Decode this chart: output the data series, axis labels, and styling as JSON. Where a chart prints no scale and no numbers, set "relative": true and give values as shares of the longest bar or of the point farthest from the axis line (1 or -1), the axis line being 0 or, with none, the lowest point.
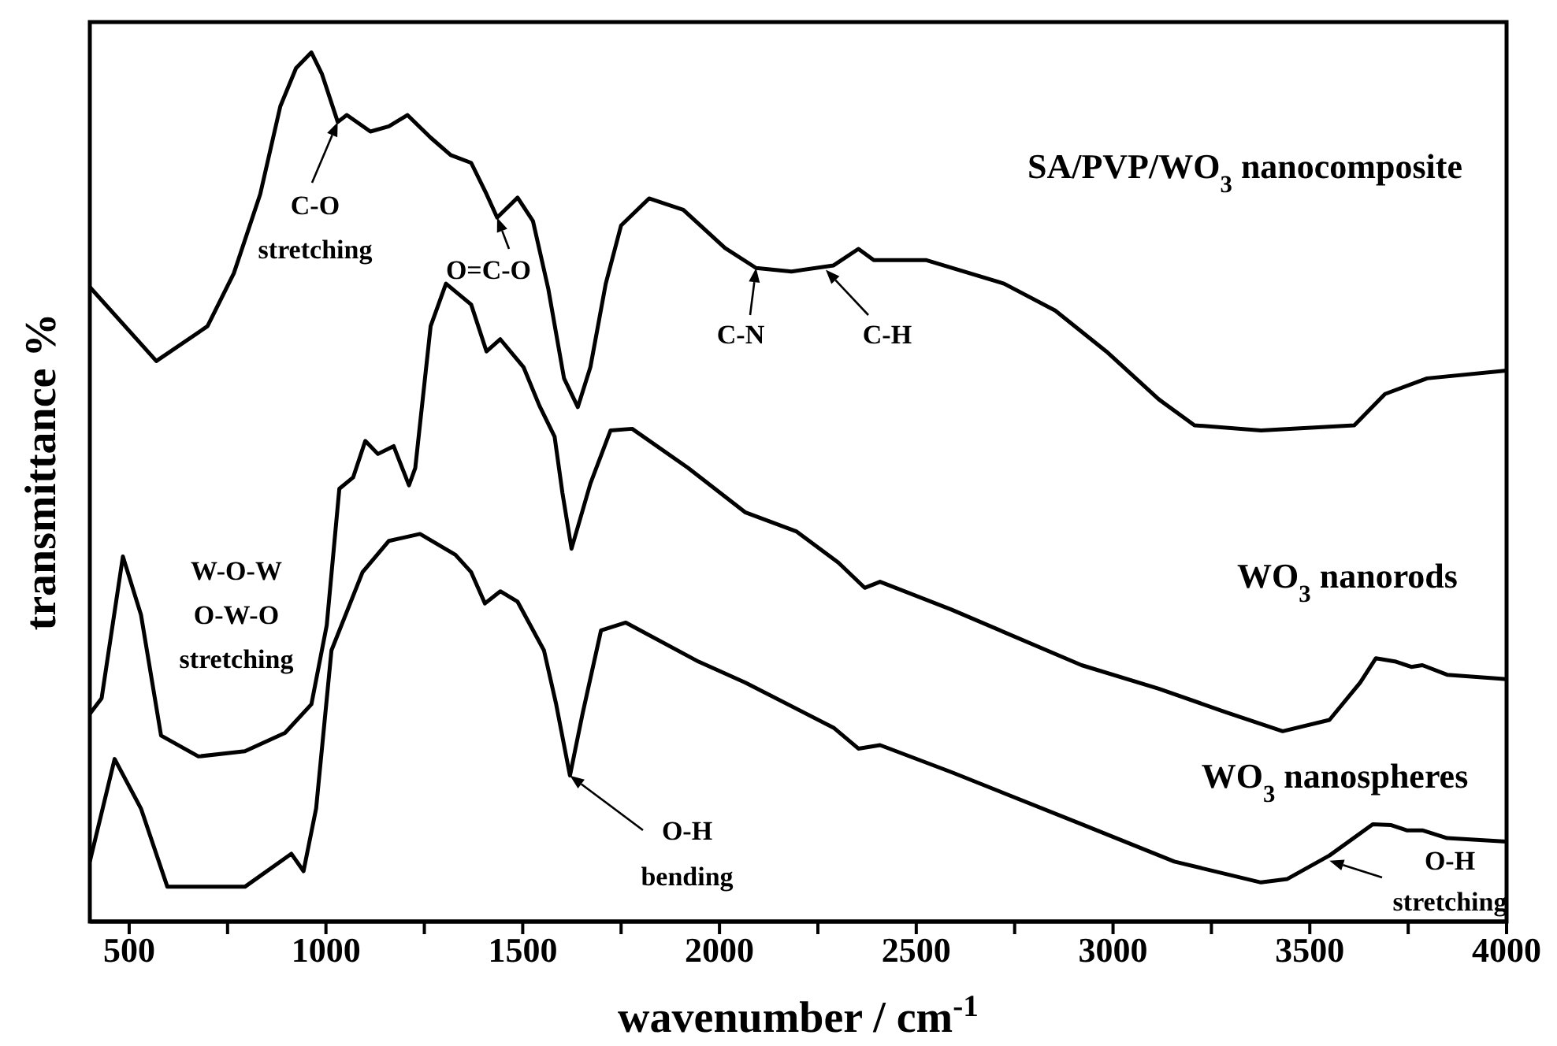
{
  "chart_data": {
    "type": "line",
    "relative": true,
    "xlabel": "wavenumber / cm$^{-1}$",
    "ylabel": "transmittance %",
    "xlim": [
      400,
      4000
    ],
    "xticks": [
      500,
      {
        "value": 750,
        "label": null
      },
      1000,
      {
        "value": 1250,
        "label": null
      },
      1500,
      {
        "value": 1750,
        "label": null
      },
      2000,
      {
        "value": 2250,
        "label": null
      },
      2500,
      {
        "value": 2750,
        "label": null
      },
      3000,
      {
        "value": 3250,
        "label": null
      },
      3500,
      {
        "value": 3750,
        "label": null
      },
      4000
    ],
    "line_style": "solid",
    "series": [
      {
        "name": "SA/PVP/WO$_{3}$ nanocomposite",
        "color": "#000000",
        "x": [
          400,
          569,
          699,
          766,
          833,
          884,
          924,
          963,
          990,
          1030,
          1053,
          1113,
          1160,
          1207,
          1266,
          1317,
          1369,
          1408,
          1435,
          1487,
          1526,
          1565,
          1605,
          1640,
          1672,
          1711,
          1750,
          1821,
          1908,
          2014,
          2093,
          2183,
          2290,
          2353,
          2392,
          2526,
          2723,
          2853,
          2983,
          3116,
          3207,
          3376,
          3613,
          3691,
          3798,
          4000
        ],
        "values": [
          0.73,
          0.645,
          0.685,
          0.746,
          0.837,
          0.938,
          0.982,
          1.0,
          0.975,
          0.92,
          0.928,
          0.909,
          0.915,
          0.928,
          0.902,
          0.882,
          0.873,
          0.837,
          0.81,
          0.833,
          0.806,
          0.728,
          0.625,
          0.592,
          0.638,
          0.734,
          0.801,
          0.832,
          0.819,
          0.775,
          0.752,
          0.748,
          0.755,
          0.774,
          0.761,
          0.761,
          0.734,
          0.703,
          0.656,
          0.601,
          0.571,
          0.565,
          0.571,
          0.607,
          0.625,
          0.634
        ]
      },
      {
        "name": "WO$_{3}$ nanorods",
        "color": "#000000",
        "x": [
          400,
          430,
          484,
          530,
          581,
          676,
          794,
          896,
          963,
          1002,
          1034,
          1069,
          1100,
          1132,
          1172,
          1211,
          1227,
          1266,
          1305,
          1369,
          1408,
          1443,
          1502,
          1542,
          1581,
          1601,
          1624,
          1672,
          1723,
          1778,
          1920,
          2065,
          2195,
          2302,
          2369,
          2408,
          2589,
          2920,
          3116,
          3286,
          3431,
          3550,
          3628,
          3668,
          3719,
          3758,
          3786,
          3849,
          4000
        ],
        "values": [
          0.239,
          0.257,
          0.42,
          0.353,
          0.214,
          0.19,
          0.196,
          0.217,
          0.25,
          0.341,
          0.498,
          0.511,
          0.553,
          0.538,
          0.547,
          0.502,
          0.522,
          0.685,
          0.734,
          0.71,
          0.656,
          0.67,
          0.638,
          0.594,
          0.558,
          0.493,
          0.429,
          0.504,
          0.565,
          0.567,
          0.522,
          0.471,
          0.449,
          0.413,
          0.384,
          0.391,
          0.359,
          0.295,
          0.268,
          0.241,
          0.219,
          0.232,
          0.275,
          0.303,
          0.299,
          0.293,
          0.295,
          0.284,
          0.279
        ]
      },
      {
        "name": "WO$_{3}$ nanospheres",
        "color": "#000000",
        "x": [
          400,
          463,
          530,
          597,
          794,
          912,
          943,
          975,
          1014,
          1093,
          1160,
          1239,
          1329,
          1369,
          1404,
          1443,
          1487,
          1554,
          1585,
          1620,
          1652,
          1699,
          1762,
          1947,
          2065,
          2290,
          2353,
          2408,
          2589,
          2920,
          3156,
          3376,
          3443,
          3550,
          3660,
          3707,
          3746,
          3786,
          3849,
          4000
        ],
        "values": [
          0.069,
          0.187,
          0.13,
          0.04,
          0.04,
          0.078,
          0.058,
          0.13,
          0.312,
          0.402,
          0.438,
          0.446,
          0.422,
          0.402,
          0.366,
          0.38,
          0.368,
          0.312,
          0.25,
          0.168,
          0.239,
          0.335,
          0.344,
          0.299,
          0.275,
          0.223,
          0.199,
          0.203,
          0.172,
          0.112,
          0.069,
          0.045,
          0.049,
          0.076,
          0.112,
          0.111,
          0.105,
          0.105,
          0.096,
          0.092
        ]
      }
    ],
    "annotations": [
      {
        "text": "C-O\nstretching",
        "x": 1030,
        "y": 0.92
      },
      {
        "text": "O=C-O",
        "x": 1435,
        "y": 0.81
      },
      {
        "text": "C-N",
        "x": 2093,
        "y": 0.752
      },
      {
        "text": "C-H",
        "x": 2270,
        "y": 0.75
      },
      "W-O-W\nO-W-O\nstretching",
      {
        "text": "O-H\nbending",
        "x": 1620,
        "y": 0.168
      },
      {
        "text": "O-H\nstretching",
        "x": 3550,
        "y": 0.07
      }
    ]
  }
}
